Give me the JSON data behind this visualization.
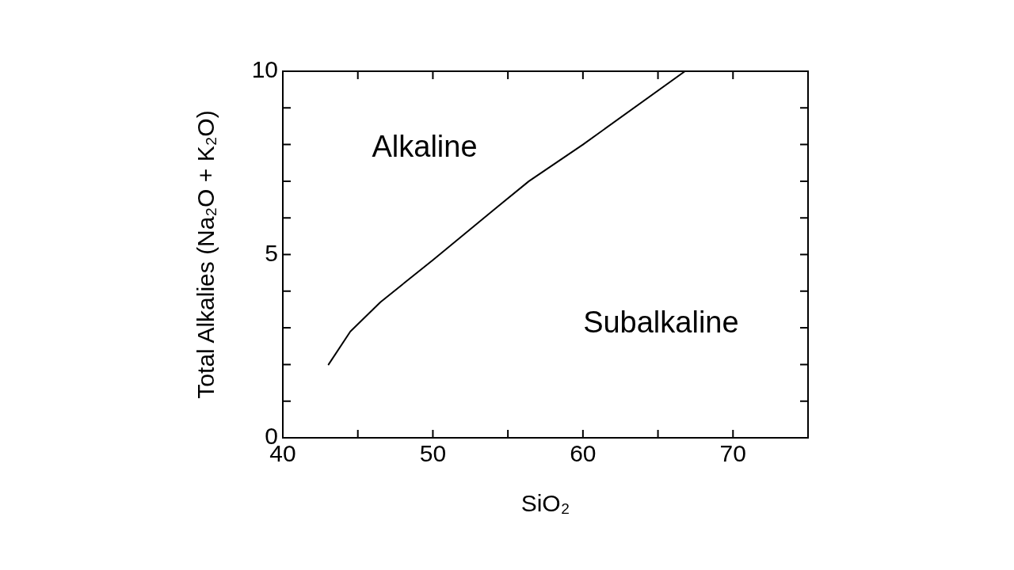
{
  "chart_data": {
    "type": "line",
    "xlabel": "SiO₂",
    "ylabel": "Total Alkalies (Na₂O + K₂O)",
    "x": [
      43.05,
      44.5,
      46.5,
      50,
      54,
      56.4,
      60,
      66.8
    ],
    "series": [
      {
        "color": "#000000",
        "values": [
          2.0,
          2.9,
          3.7,
          4.85,
          6.2,
          7.0,
          8.0,
          10.0
        ]
      }
    ],
    "xlim": [
      40,
      75
    ],
    "ylim": [
      0,
      10
    ],
    "xticks": [
      40,
      {
        "value": 45,
        "label": null
      },
      50,
      {
        "value": 55,
        "label": null
      },
      60,
      {
        "value": 65,
        "label": null
      },
      70,
      {
        "value": 75,
        "label": null
      }
    ],
    "yticks": [
      0,
      {
        "value": 1,
        "label": null
      },
      {
        "value": 2,
        "label": null
      },
      {
        "value": 3,
        "label": null
      },
      {
        "value": 4,
        "label": null
      },
      5,
      {
        "value": 6,
        "label": null
      },
      {
        "value": 7,
        "label": null
      },
      {
        "value": 8,
        "label": null
      },
      {
        "value": 9,
        "label": null
      },
      10
    ],
    "annotations": [
      "Alkaline",
      "Subalkaline"
    ],
    "grid": false,
    "legend": false,
    "marker": "none",
    "line_style": "solid"
  }
}
